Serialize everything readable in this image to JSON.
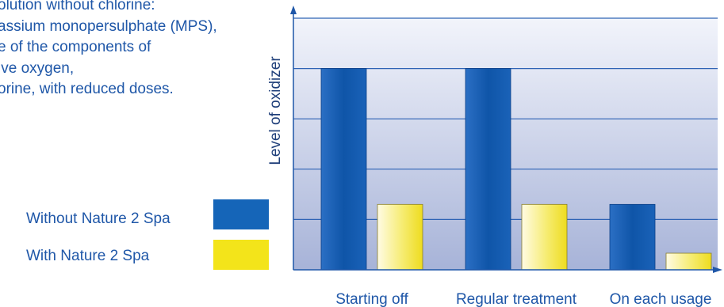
{
  "description_lines": [
    "olution without chlorine:",
    "assium monopersulphate (MPS),",
    "e of the components of",
    "ive oxygen,",
    "orine, with reduced doses."
  ],
  "colors": {
    "without": "#1565b8",
    "with": "#f3e41a",
    "plot_top": "#f2f4fb",
    "plot_bottom": "#a7b3d8",
    "gridline": "#2f63b5",
    "text": "#1f57a8"
  },
  "chart_data": {
    "type": "bar",
    "categories": [
      "Starting off",
      "Regular treatment",
      "On each usage"
    ],
    "series": [
      {
        "name": "Without Nature 2 Spa",
        "values": [
          4,
          4,
          1.3
        ]
      },
      {
        "name": "With Nature 2 Spa",
        "values": [
          1.3,
          1.3,
          0.33
        ]
      }
    ],
    "xlabel": "",
    "ylabel": "Level of oxidizer",
    "ylim": [
      0,
      5
    ],
    "grid": true,
    "legend_position": "left"
  }
}
